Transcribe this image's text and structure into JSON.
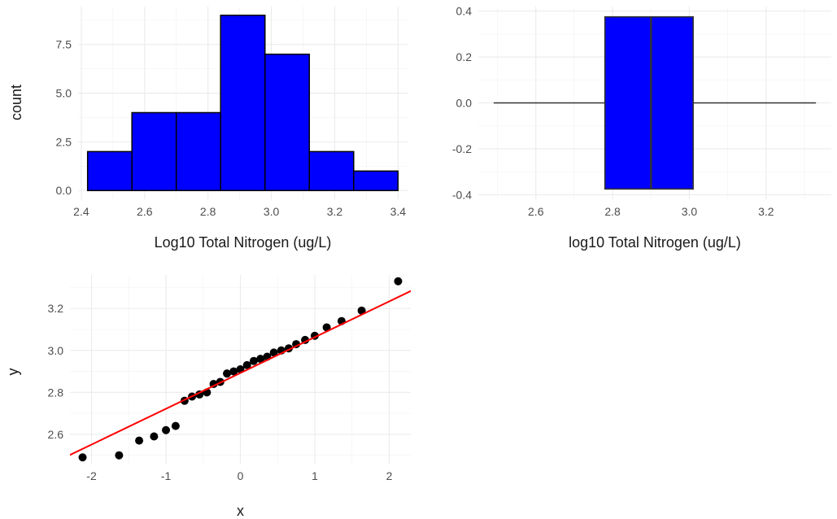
{
  "chart_data": [
    {
      "type": "bar",
      "subtype": "histogram",
      "xlabel": "Log10 Total Nitrogen (ug/L)",
      "ylabel": "count",
      "bins": [
        {
          "from": 2.42,
          "to": 2.56,
          "count": 2
        },
        {
          "from": 2.56,
          "to": 2.7,
          "count": 4
        },
        {
          "from": 2.7,
          "to": 2.84,
          "count": 4
        },
        {
          "from": 2.84,
          "to": 2.98,
          "count": 9
        },
        {
          "from": 2.98,
          "to": 3.12,
          "count": 7
        },
        {
          "from": 3.12,
          "to": 3.26,
          "count": 2
        },
        {
          "from": 3.26,
          "to": 3.4,
          "count": 1
        }
      ],
      "xlim": [
        2.39,
        3.43
      ],
      "ylim": [
        -0.45,
        9.45
      ],
      "x_ticks": [
        "2.4",
        "2.6",
        "2.8",
        "3.0",
        "3.2",
        "3.4"
      ],
      "y_ticks": [
        "0.0",
        "2.5",
        "5.0",
        "7.5"
      ],
      "fill_color": "#0000ff",
      "border_color": "#000000"
    },
    {
      "type": "boxplot",
      "xlabel": "log10 Total Nitrogen (ug/L)",
      "ylabel": "",
      "box": {
        "whisker_low": 2.49,
        "q1": 2.78,
        "median": 2.9,
        "q3": 3.01,
        "whisker_high": 3.33,
        "half_height": 0.375
      },
      "xlim": [
        2.45,
        3.37
      ],
      "ylim": [
        -0.42,
        0.42
      ],
      "x_ticks": [
        "2.6",
        "2.8",
        "3.0",
        "3.2"
      ],
      "y_ticks": [
        "-0.4",
        "-0.2",
        "0.0",
        "0.2",
        "0.4"
      ],
      "fill_color": "#0000ff",
      "line_color": "#333333"
    },
    {
      "type": "scatter",
      "subtype": "qq-plot",
      "xlabel": "x",
      "ylabel": "y",
      "points": [
        {
          "x": -2.12,
          "y": 2.49
        },
        {
          "x": -1.63,
          "y": 2.5
        },
        {
          "x": -1.36,
          "y": 2.57
        },
        {
          "x": -1.16,
          "y": 2.59
        },
        {
          "x": -1.0,
          "y": 2.62
        },
        {
          "x": -0.87,
          "y": 2.64
        },
        {
          "x": -0.75,
          "y": 2.76
        },
        {
          "x": -0.65,
          "y": 2.78
        },
        {
          "x": -0.55,
          "y": 2.79
        },
        {
          "x": -0.45,
          "y": 2.8
        },
        {
          "x": -0.36,
          "y": 2.84
        },
        {
          "x": -0.27,
          "y": 2.85
        },
        {
          "x": -0.18,
          "y": 2.89
        },
        {
          "x": -0.09,
          "y": 2.9
        },
        {
          "x": 0.0,
          "y": 2.91
        },
        {
          "x": 0.09,
          "y": 2.93
        },
        {
          "x": 0.18,
          "y": 2.95
        },
        {
          "x": 0.27,
          "y": 2.96
        },
        {
          "x": 0.36,
          "y": 2.97
        },
        {
          "x": 0.45,
          "y": 2.99
        },
        {
          "x": 0.55,
          "y": 3.0
        },
        {
          "x": 0.65,
          "y": 3.01
        },
        {
          "x": 0.75,
          "y": 3.03
        },
        {
          "x": 0.87,
          "y": 3.05
        },
        {
          "x": 1.0,
          "y": 3.07
        },
        {
          "x": 1.16,
          "y": 3.11
        },
        {
          "x": 1.36,
          "y": 3.14
        },
        {
          "x": 1.63,
          "y": 3.19
        },
        {
          "x": 2.12,
          "y": 3.33
        }
      ],
      "reference_line": {
        "x1": -2.3,
        "y1": 2.5,
        "x2": 2.3,
        "y2": 3.285
      },
      "xlim": [
        -2.29,
        2.29
      ],
      "ylim": [
        2.46,
        3.36
      ],
      "x_ticks": [
        "-2",
        "-1",
        "0",
        "1",
        "2"
      ],
      "y_ticks": [
        "2.6",
        "2.8",
        "3.0",
        "3.2"
      ],
      "point_color": "#000000",
      "line_color": "#ff0000"
    }
  ]
}
